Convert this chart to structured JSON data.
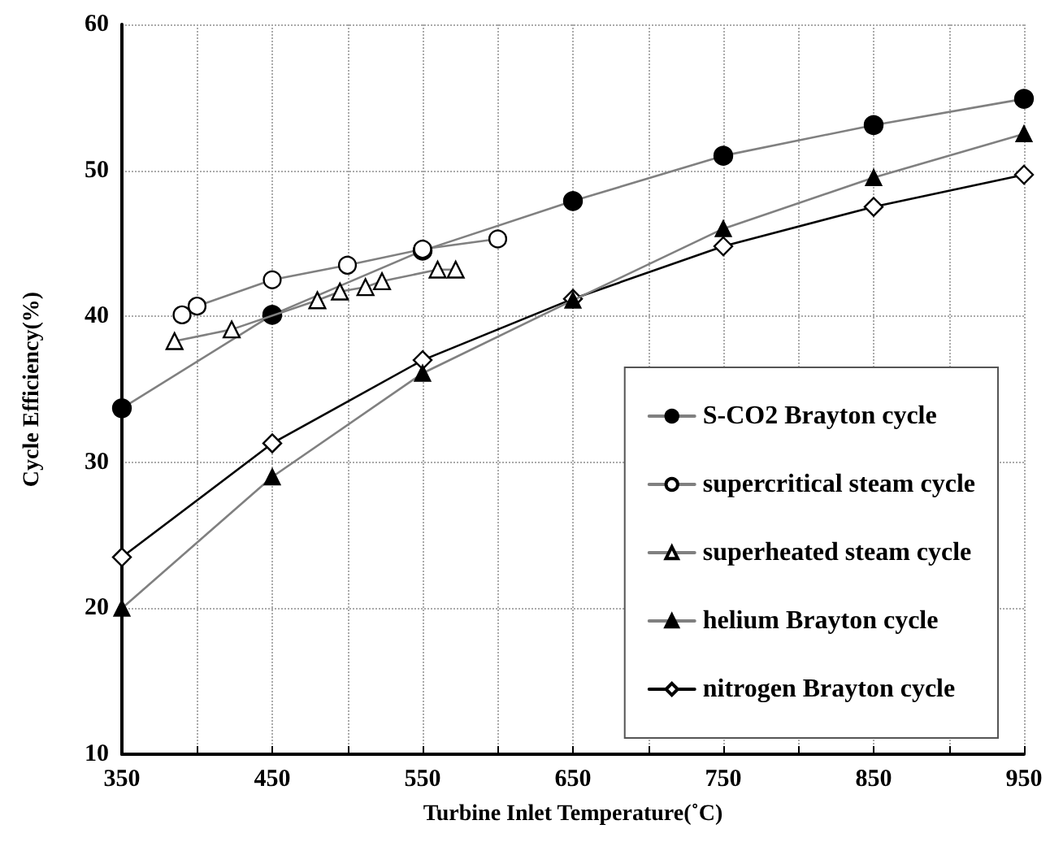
{
  "chart_data": {
    "type": "line",
    "xlabel": "Turbine Inlet Temperature(˚C)",
    "ylabel": "Cycle Efficiency(%)",
    "xlim": [
      350,
      950
    ],
    "xticks": [
      350,
      {
        "value": 400,
        "label": null
      },
      450,
      {
        "value": 500,
        "label": null
      },
      550,
      {
        "value": 600,
        "label": null
      },
      650,
      {
        "value": 700,
        "label": null
      },
      750,
      {
        "value": 800,
        "label": null
      },
      850,
      {
        "value": 900,
        "label": null
      },
      950
    ],
    "ylim": [
      10,
      60
    ],
    "yticks": [
      10,
      20,
      30,
      40,
      50,
      60
    ],
    "grid": true,
    "legend": "bottom right",
    "line_style": "solid",
    "series": [
      {
        "name": "S-CO2 Brayton cycle",
        "marker": "circle",
        "color": "#808080",
        "colors": [
          "#000000",
          "#000000",
          "#000000",
          "#000000",
          "#000000",
          "#000000",
          "#000000"
        ],
        "x": [
          350,
          450,
          550,
          650,
          750,
          850,
          950
        ],
        "values": [
          33.7,
          40.1,
          44.5,
          47.9,
          51.0,
          53.1,
          54.9
        ]
      },
      {
        "name": "supercritical steam cycle",
        "marker": "circle",
        "color": "#808080",
        "colors": [
          "#ffffff",
          "#ffffff",
          "#ffffff",
          "#ffffff",
          "#ffffff",
          "#ffffff"
        ],
        "x": [
          390,
          400,
          450,
          500,
          550,
          600
        ],
        "values": [
          40.1,
          40.7,
          42.5,
          43.5,
          44.6,
          45.3
        ]
      },
      {
        "name": "superheated steam cycle",
        "marker": "triangle",
        "color": "#808080",
        "colors": [
          "#ffffff",
          "#ffffff",
          "#ffffff",
          "#ffffff",
          "#ffffff",
          "#ffffff",
          "#ffffff",
          "#ffffff"
        ],
        "x": [
          385,
          423,
          480,
          495,
          512,
          523,
          560,
          572
        ],
        "values": [
          38.3,
          39.1,
          41.1,
          41.7,
          42.0,
          42.4,
          43.2,
          43.2
        ]
      },
      {
        "name": "helium Brayton cycle",
        "marker": "triangle",
        "color": "#808080",
        "colors": [
          "#000000",
          "#000000",
          "#000000",
          "#000000",
          "#000000",
          "#000000",
          "#000000"
        ],
        "x": [
          350,
          450,
          550,
          650,
          750,
          850,
          950
        ],
        "values": [
          20.0,
          29.0,
          36.1,
          41.1,
          46.0,
          49.5,
          52.5
        ]
      },
      {
        "name": "nitrogen Brayton cycle",
        "marker": "diamond",
        "color": "#000000",
        "colors": [
          "#ffffff",
          "#ffffff",
          "#ffffff",
          "#ffffff",
          "#ffffff",
          "#ffffff",
          "#ffffff"
        ],
        "x": [
          350,
          450,
          550,
          650,
          750,
          850,
          950
        ],
        "values": [
          23.5,
          31.3,
          37.0,
          41.2,
          44.8,
          47.5,
          49.7
        ]
      }
    ]
  }
}
